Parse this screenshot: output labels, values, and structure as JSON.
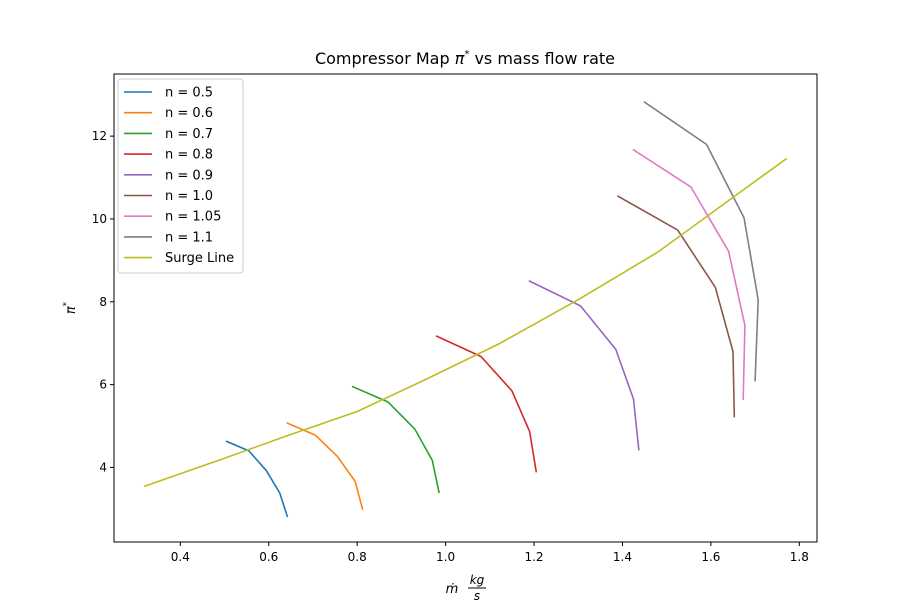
{
  "chart_data": {
    "type": "line",
    "title_main": "Compressor Map ",
    "title_pi": "π",
    "title_star": "*",
    "title_rest": " vs mass flow rate",
    "xlabel_mdot": "ṁ",
    "xlabel_num": "kg",
    "xlabel_den": "s",
    "ylabel_pi": "π",
    "ylabel_star": "*",
    "xlim": [
      0.25,
      1.84
    ],
    "ylim": [
      2.2,
      13.5
    ],
    "xticks": [
      0.4,
      0.6,
      0.8,
      1.0,
      1.2,
      1.4,
      1.6,
      1.8
    ],
    "xtick_labels": [
      "0.4",
      "0.6",
      "0.8",
      "1.0",
      "1.2",
      "1.4",
      "1.6",
      "1.8"
    ],
    "yticks": [
      4,
      6,
      8,
      10,
      12
    ],
    "ytick_labels": [
      "4",
      "6",
      "8",
      "10",
      "12"
    ],
    "grid": false,
    "legend_position": "top-left",
    "series": [
      {
        "name": "n = 0.5",
        "color": "#1f77b4",
        "x": [
          0.505,
          0.555,
          0.595,
          0.625,
          0.642
        ],
        "y": [
          4.63,
          4.4,
          3.92,
          3.38,
          2.82
        ]
      },
      {
        "name": "n = 0.6",
        "color": "#ff7f0e",
        "x": [
          0.642,
          0.705,
          0.755,
          0.795,
          0.812
        ],
        "y": [
          5.07,
          4.78,
          4.27,
          3.67,
          3.0
        ]
      },
      {
        "name": "n = 0.7",
        "color": "#2ca02c",
        "x": [
          0.79,
          0.87,
          0.93,
          0.97,
          0.985
        ],
        "y": [
          5.95,
          5.58,
          4.93,
          4.17,
          3.4
        ]
      },
      {
        "name": "n = 0.8",
        "color": "#d62728",
        "x": [
          0.98,
          1.08,
          1.15,
          1.19,
          1.205
        ],
        "y": [
          7.17,
          6.68,
          5.85,
          4.87,
          3.9
        ]
      },
      {
        "name": "n = 0.9",
        "color": "#9467bd",
        "x": [
          1.19,
          1.305,
          1.385,
          1.425,
          1.437
        ],
        "y": [
          8.5,
          7.9,
          6.85,
          5.65,
          4.43
        ]
      },
      {
        "name": "n = 1.0",
        "color": "#8c564b",
        "x": [
          1.39,
          1.525,
          1.61,
          1.65,
          1.653
        ],
        "y": [
          10.55,
          9.73,
          8.35,
          6.8,
          5.23
        ]
      },
      {
        "name": "n = 1.05",
        "color": "#e377c2",
        "x": [
          1.425,
          1.555,
          1.64,
          1.677,
          1.673
        ],
        "y": [
          11.67,
          10.77,
          9.22,
          7.43,
          5.65
        ]
      },
      {
        "name": "n = 1.1",
        "color": "#7f7f7f",
        "x": [
          1.45,
          1.59,
          1.675,
          1.707,
          1.7
        ],
        "y": [
          12.82,
          11.8,
          10.03,
          8.05,
          6.1
        ]
      },
      {
        "name": "Surge Line",
        "color": "#bcbd22",
        "x": [
          0.32,
          0.5,
          0.64,
          0.8,
          0.95,
          1.12,
          1.3,
          1.48,
          1.65,
          1.77
        ],
        "y": [
          3.55,
          4.22,
          4.76,
          5.35,
          6.1,
          6.98,
          8.05,
          9.2,
          10.52,
          11.45
        ]
      }
    ]
  }
}
